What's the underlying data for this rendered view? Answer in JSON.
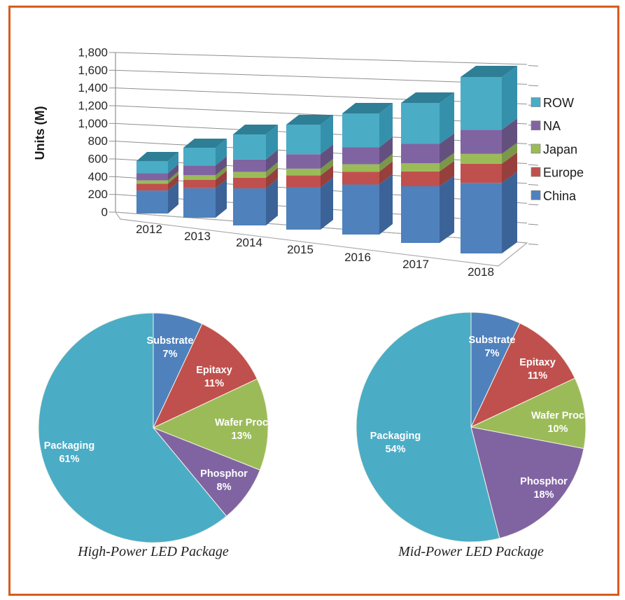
{
  "figure": {
    "border_color": "#D85C1C",
    "background": "#ffffff"
  },
  "chart_data": [
    {
      "type": "bar",
      "stacked": true,
      "projection": "3d",
      "title": "",
      "ylabel": "Units (M)",
      "xlabel": "",
      "ylim": [
        0,
        1800
      ],
      "ytick_step": 200,
      "y_ticks": [
        "1,800",
        "1,600",
        "1,400",
        "1,200",
        "1,000",
        "800",
        "600",
        "400",
        "200",
        "0"
      ],
      "grid": "on",
      "legend_position": "right",
      "legend_order": [
        "ROW",
        "NA",
        "Japan",
        "Europe",
        "China"
      ],
      "categories": [
        "2012",
        "2013",
        "2014",
        "2015",
        "2016",
        "2017",
        "2018"
      ],
      "series": [
        {
          "name": "China",
          "color": "#4F81BD",
          "values": [
            272,
            295,
            330,
            375,
            438,
            490,
            560
          ]
        },
        {
          "name": "Europe",
          "color": "#C0504D",
          "values": [
            80,
            85,
            95,
            105,
            112,
            128,
            152
          ]
        },
        {
          "name": "Japan",
          "color": "#9BBB59",
          "values": [
            40,
            45,
            52,
            60,
            65,
            70,
            78
          ]
        },
        {
          "name": "NA",
          "color": "#8064A2",
          "values": [
            84,
            98,
            110,
            128,
            148,
            168,
            192
          ]
        },
        {
          "name": "ROW",
          "color": "#4BACC6",
          "values": [
            144,
            177,
            223,
            262,
            297,
            354,
            418
          ]
        }
      ],
      "totals_estimated": [
        620,
        700,
        810,
        930,
        1060,
        1210,
        1400
      ]
    },
    {
      "type": "pie",
      "title": "High-Power LED Package",
      "start_angle": "12-oclock",
      "direction": "clockwise",
      "slices": [
        {
          "label": "Substrate",
          "value": 7,
          "pct": "7%",
          "color": "#4F81BD"
        },
        {
          "label": "Epitaxy",
          "value": 11,
          "pct": "11%",
          "color": "#C0504D"
        },
        {
          "label": "Wafer Proc",
          "value": 13,
          "pct": "13%",
          "color": "#9BBB59"
        },
        {
          "label": "Phosphor",
          "value": 8,
          "pct": "8%",
          "color": "#8064A2"
        },
        {
          "label": "Packaging",
          "value": 61,
          "pct": "61%",
          "color": "#4BACC6"
        }
      ]
    },
    {
      "type": "pie",
      "title": "Mid-Power LED Package",
      "start_angle": "12-oclock",
      "direction": "clockwise",
      "slices": [
        {
          "label": "Substrate",
          "value": 7,
          "pct": "7%",
          "color": "#4F81BD"
        },
        {
          "label": "Epitaxy",
          "value": 11,
          "pct": "11%",
          "color": "#C0504D"
        },
        {
          "label": "Wafer Proc",
          "value": 10,
          "pct": "10%",
          "color": "#9BBB59"
        },
        {
          "label": "Phosphor",
          "value": 18,
          "pct": "18%",
          "color": "#8064A2"
        },
        {
          "label": "Packaging",
          "value": 54,
          "pct": "54%",
          "color": "#4BACC6"
        }
      ]
    }
  ]
}
